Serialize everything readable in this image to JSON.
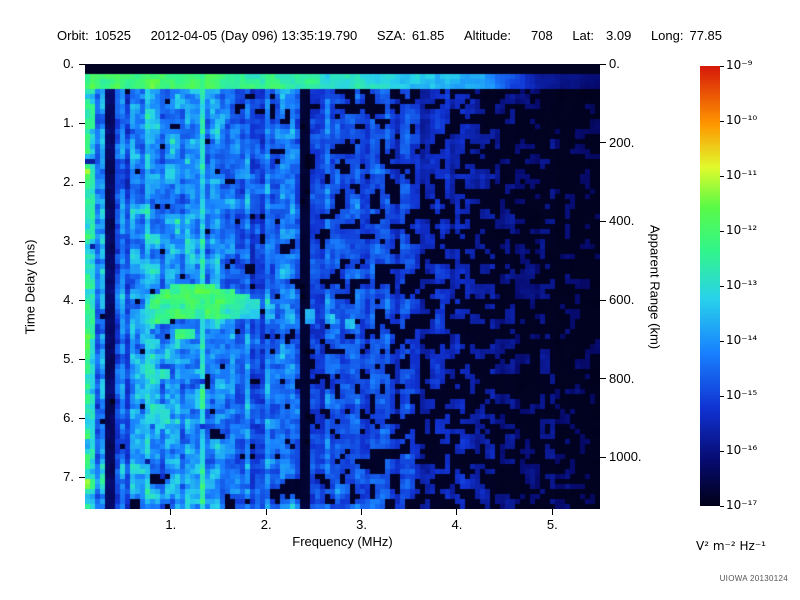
{
  "header": {
    "orbit_label": "Orbit:",
    "orbit_value": "10525",
    "datetime": "2012-04-05 (Day 096) 13:35:19.790",
    "sza_label": "SZA:",
    "sza_value": "61.85",
    "altitude_label": "Altitude:",
    "altitude_value": "708",
    "lat_label": "Lat:",
    "lat_value": "3.09",
    "long_label": "Long:",
    "long_value": "77.85"
  },
  "footer": {
    "watermark": "UIOWA 20130124"
  },
  "chart_data": {
    "type": "heatmap",
    "xlabel": "Frequency (MHz)",
    "ylabel": "Time Delay (ms)",
    "y2label": "Apparent Range (km)",
    "x_range": [
      0.1,
      5.5
    ],
    "y_range": [
      0.0,
      7.54
    ],
    "km_per_ms": 150,
    "x_ticks": [
      {
        "v": 1,
        "label": "1."
      },
      {
        "v": 2,
        "label": "2."
      },
      {
        "v": 3,
        "label": "3."
      },
      {
        "v": 4,
        "label": "4."
      },
      {
        "v": 5,
        "label": "5."
      }
    ],
    "y_ticks": [
      {
        "v": 0,
        "label": "0."
      },
      {
        "v": 1,
        "label": "1."
      },
      {
        "v": 2,
        "label": "2."
      },
      {
        "v": 3,
        "label": "3."
      },
      {
        "v": 4,
        "label": "4."
      },
      {
        "v": 5,
        "label": "5."
      },
      {
        "v": 6,
        "label": "6."
      },
      {
        "v": 7,
        "label": "7."
      }
    ],
    "y2_ticks_km": [
      {
        "v": 0,
        "label": "0."
      },
      {
        "v": 200,
        "label": "200."
      },
      {
        "v": 400,
        "label": "400."
      },
      {
        "v": 600,
        "label": "600."
      },
      {
        "v": 800,
        "label": "800."
      },
      {
        "v": 1000,
        "label": "1000."
      }
    ],
    "colorbar": {
      "ticks": [
        "10⁻⁹",
        "10⁻¹⁰",
        "10⁻¹¹",
        "10⁻¹²",
        "10⁻¹³",
        "10⁻¹⁴",
        "10⁻¹⁵",
        "10⁻¹⁶",
        "10⁻¹⁷"
      ],
      "unit": "V² m⁻² Hz⁻¹",
      "top_value_exp": -9,
      "bottom_value_exp": -17
    },
    "colormap_stops": [
      [
        0.0,
        [
          1,
          1,
          26
        ]
      ],
      [
        0.1,
        [
          6,
          10,
          110
        ]
      ],
      [
        0.22,
        [
          16,
          50,
          210
        ]
      ],
      [
        0.35,
        [
          25,
          130,
          255
        ]
      ],
      [
        0.47,
        [
          40,
          210,
          235
        ]
      ],
      [
        0.58,
        [
          50,
          245,
          140
        ]
      ],
      [
        0.68,
        [
          90,
          250,
          70
        ]
      ],
      [
        0.77,
        [
          225,
          250,
          45
        ]
      ],
      [
        0.87,
        [
          255,
          150,
          0
        ]
      ],
      [
        1.0,
        [
          215,
          25,
          10
        ]
      ]
    ],
    "features": {
      "surface_band": {
        "d_start": 0.14,
        "d_end": 0.42,
        "amp": [
          [
            0.1,
            0.6
          ],
          [
            1.0,
            0.62
          ],
          [
            2.5,
            0.55
          ],
          [
            3.3,
            0.48
          ],
          [
            4.3,
            0.4
          ],
          [
            4.9,
            0.15
          ],
          [
            5.5,
            0.1
          ]
        ]
      },
      "trace": {
        "pts": [
          [
            0.7,
            4.45
          ],
          [
            0.82,
            4.18
          ],
          [
            1.0,
            4.06
          ],
          [
            1.35,
            4.02
          ],
          [
            1.6,
            4.06
          ],
          [
            1.9,
            4.14
          ],
          [
            2.15,
            4.2
          ],
          [
            2.45,
            4.28
          ],
          [
            2.75,
            4.35
          ],
          [
            3.05,
            4.5
          ]
        ],
        "thick": [
          [
            0.7,
            0.28
          ],
          [
            1.0,
            0.3
          ],
          [
            1.5,
            0.26
          ],
          [
            1.9,
            0.16
          ],
          [
            2.2,
            0.12
          ],
          [
            3.05,
            0.1
          ]
        ],
        "amp": [
          [
            0.7,
            0.5
          ],
          [
            0.85,
            0.66
          ],
          [
            1.1,
            0.68
          ],
          [
            1.5,
            0.62
          ],
          [
            1.9,
            0.52
          ],
          [
            2.2,
            0.46
          ],
          [
            3.05,
            0.44
          ]
        ],
        "dash_from": 1.95
      },
      "stripes": [
        {
          "f": 0.16,
          "w": 0.12,
          "mult": 1.0,
          "add": 0.14
        },
        {
          "f": 0.36,
          "w": 0.07,
          "mult": 0.25,
          "add": 0.0
        },
        {
          "f": 0.55,
          "w": 0.05,
          "mult": 0.6,
          "add": 0.0
        },
        {
          "f": 0.76,
          "w": 0.08,
          "mult": 1.0,
          "add": 0.13
        },
        {
          "f": 1.32,
          "w": 0.08,
          "mult": 1.0,
          "add": 0.2
        },
        {
          "f": 2.4,
          "w": 0.14,
          "mult": 0.12,
          "add": 0.0
        }
      ],
      "blobs": [
        {
          "f": 0.95,
          "d": 5.25,
          "rf": 0.06,
          "rd": 0.12,
          "t": 0.55
        },
        {
          "f": 0.88,
          "d": 5.95,
          "rf": 0.1,
          "rd": 0.22,
          "t": 0.5
        },
        {
          "f": 0.15,
          "d": 0.9,
          "rf": 0.05,
          "rd": 0.25,
          "t": 0.6
        },
        {
          "f": 0.15,
          "d": 2.5,
          "rf": 0.05,
          "rd": 0.2,
          "t": 0.55
        },
        {
          "f": 0.16,
          "d": 4.4,
          "rf": 0.05,
          "rd": 0.3,
          "t": 0.58
        },
        {
          "f": 0.15,
          "d": 6.2,
          "rf": 0.05,
          "rd": 0.2,
          "t": 0.5
        },
        {
          "f": 1.15,
          "d": 4.6,
          "rf": 0.12,
          "rd": 0.1,
          "t": 0.55
        },
        {
          "f": 0.8,
          "d": 4.75,
          "rf": 0.08,
          "rd": 0.1,
          "t": 0.5
        }
      ]
    },
    "render": {
      "seed": 20130124,
      "cols": 103,
      "rows": 89,
      "base": [
        [
          0.1,
          0.4
        ],
        [
          0.3,
          0.3
        ],
        [
          0.8,
          0.33
        ],
        [
          1.6,
          0.3
        ],
        [
          2.3,
          0.27
        ],
        [
          3.0,
          0.23
        ],
        [
          3.6,
          0.18
        ],
        [
          4.3,
          0.12
        ],
        [
          5.0,
          0.09
        ],
        [
          5.5,
          0.07
        ]
      ],
      "sparse": [
        [
          0.1,
          0.2
        ],
        [
          1.5,
          0.26
        ],
        [
          2.5,
          0.34
        ],
        [
          3.2,
          0.42
        ],
        [
          4.0,
          0.52
        ],
        [
          5.5,
          0.66
        ]
      ]
    }
  }
}
